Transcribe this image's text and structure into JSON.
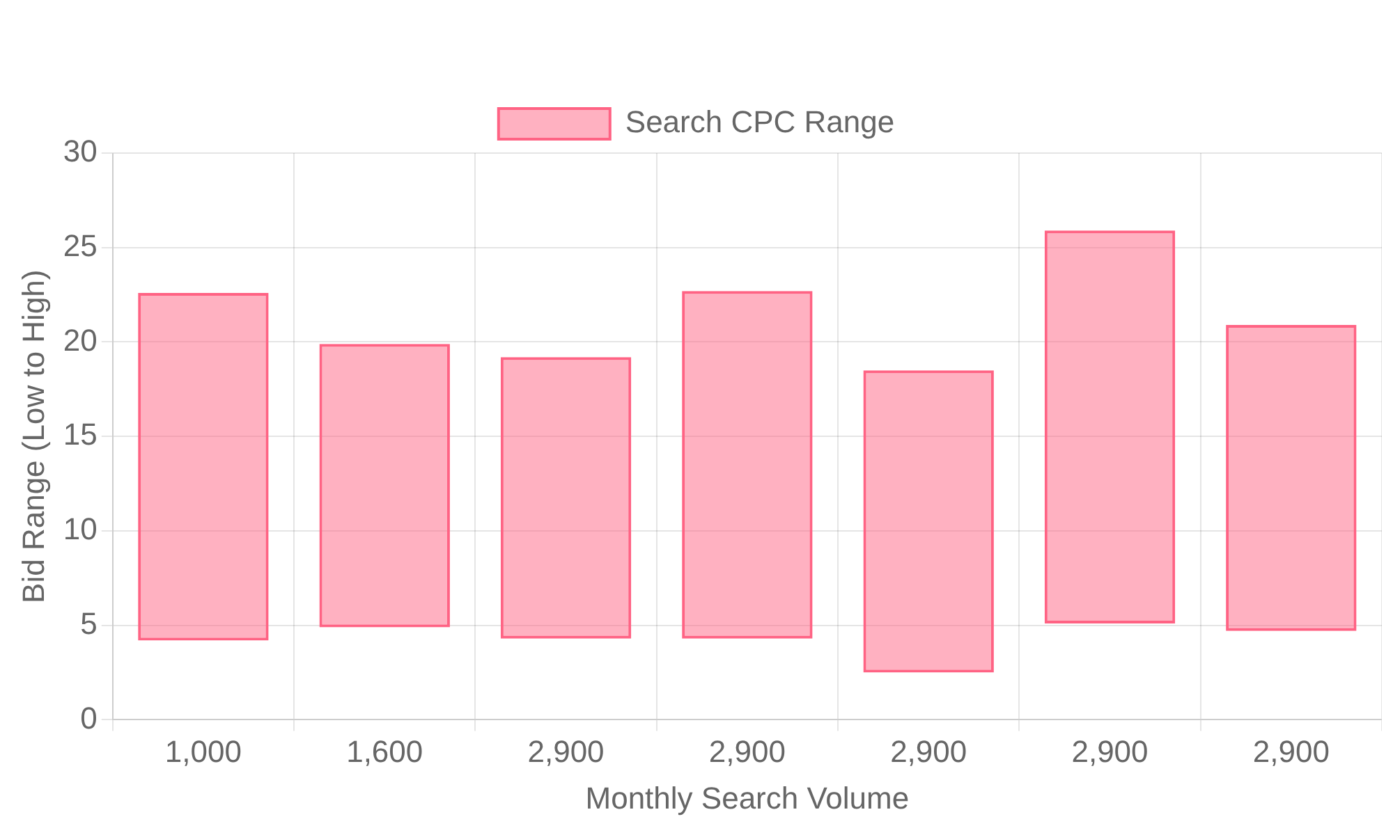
{
  "chart_data": {
    "type": "bar",
    "xlabel": "Monthly Search Volume",
    "ylabel": "Bid Range (Low to High)",
    "categories": [
      "1,000",
      "1,600",
      "2,900",
      "2,900",
      "2,900",
      "2,900",
      "2,900"
    ],
    "series": [
      {
        "name": "Search CPC Range",
        "color": "#ff6384",
        "values": [
          18.4,
          15.0,
          14.9,
          18.4,
          16.0,
          20.8,
          16.2
        ],
        "base": [
          4.2,
          4.9,
          4.3,
          4.3,
          2.5,
          5.1,
          4.7
        ]
      }
    ],
    "ylim": [
      0,
      30
    ],
    "yticks": [
      0,
      5,
      10,
      15,
      20,
      25,
      30
    ],
    "grid": true,
    "legend": "top"
  }
}
